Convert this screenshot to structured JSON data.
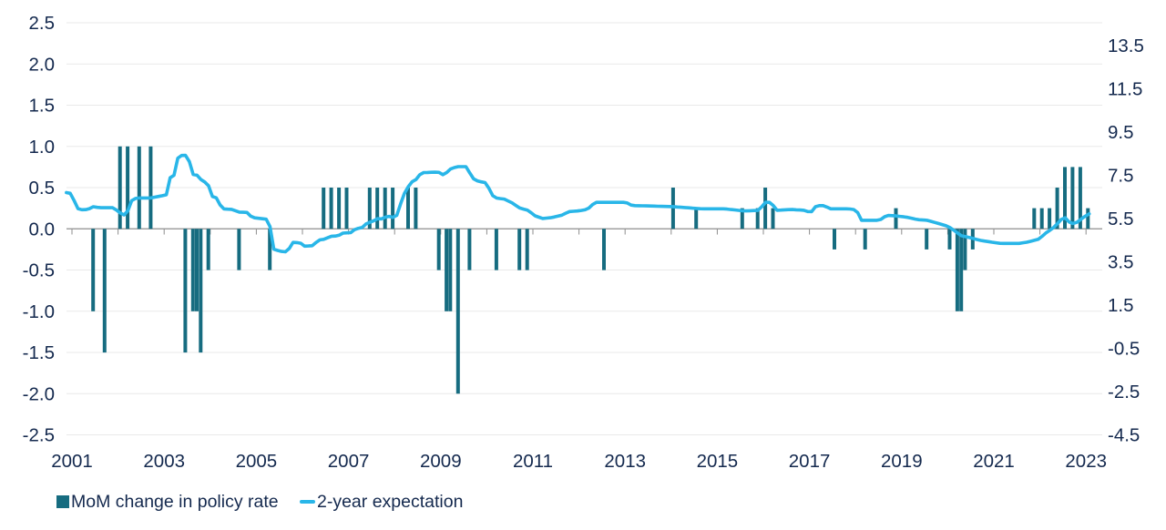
{
  "legend": {
    "bar_label": "MoM change in policy rate",
    "line_label": "2-year expectation"
  },
  "colors": {
    "bar": "#166c80",
    "line": "#29b6e8",
    "text": "#14294e",
    "gridline": "#e9e9e9",
    "axis": "#8e8e8e",
    "background": "#ffffff"
  },
  "chart_data": {
    "type": "combo-bar-line",
    "title": "",
    "grid": true,
    "legend_position": "bottom-left",
    "x_axis": {
      "tick_years": [
        2001,
        2002,
        2003,
        2004,
        2005,
        2006,
        2007,
        2008,
        2009,
        2010,
        2011,
        2012,
        2013,
        2014,
        2015,
        2016,
        2017,
        2018,
        2019,
        2020,
        2021,
        2022,
        2023
      ],
      "label_years": [
        "2001",
        "2003",
        "2005",
        "2007",
        "2009",
        "2011",
        "2013",
        "2015",
        "2017",
        "2019",
        "2021",
        "2023"
      ]
    },
    "left_axis": {
      "min": -2.5,
      "max": 2.5,
      "step": 0.5,
      "tick_labels": [
        "2.5",
        "2.0",
        "1.5",
        "1.0",
        "0.5",
        "0.0",
        "-0.5",
        "-1.0",
        "-1.5",
        "-2.0",
        "-2.5"
      ]
    },
    "right_axis": {
      "min": -4.5,
      "max": 13.5,
      "step": 2,
      "tick_labels": [
        "13.5",
        "11.5",
        "9.5",
        "7.5",
        "5.5",
        "3.5",
        "1.5",
        "-0.5",
        "-2.5",
        "-4.5"
      ]
    },
    "series": [
      {
        "name": "MoM change in policy rate",
        "type": "bar",
        "axis": "left",
        "color": "#166c80",
        "points": [
          [
            "2001-06",
            -1.0
          ],
          [
            "2001-09",
            -1.5
          ],
          [
            "2002-01",
            1.0
          ],
          [
            "2002-03",
            1.0
          ],
          [
            "2002-06",
            1.0
          ],
          [
            "2002-09",
            1.0
          ],
          [
            "2003-06",
            -1.5
          ],
          [
            "2003-08",
            -1.0
          ],
          [
            "2003-09",
            -1.0
          ],
          [
            "2003-10",
            -1.5
          ],
          [
            "2003-12",
            -0.5
          ],
          [
            "2004-08",
            -0.5
          ],
          [
            "2005-04",
            -0.5
          ],
          [
            "2006-06",
            0.5
          ],
          [
            "2006-08",
            0.5
          ],
          [
            "2006-10",
            0.5
          ],
          [
            "2006-12",
            0.5
          ],
          [
            "2007-06",
            0.5
          ],
          [
            "2007-08",
            0.5
          ],
          [
            "2007-10",
            0.5
          ],
          [
            "2007-12",
            0.5
          ],
          [
            "2008-04",
            0.5
          ],
          [
            "2008-06",
            0.5
          ],
          [
            "2008-12",
            -0.5
          ],
          [
            "2009-02",
            -1.0
          ],
          [
            "2009-03",
            -1.0
          ],
          [
            "2009-05",
            -2.0
          ],
          [
            "2009-08",
            -0.5
          ],
          [
            "2010-03",
            -0.5
          ],
          [
            "2010-09",
            -0.5
          ],
          [
            "2010-11",
            -0.5
          ],
          [
            "2012-07",
            -0.5
          ],
          [
            "2014-01",
            0.5
          ],
          [
            "2014-07",
            0.25
          ],
          [
            "2015-07",
            0.25
          ],
          [
            "2015-11",
            0.25
          ],
          [
            "2016-01",
            0.5
          ],
          [
            "2016-03",
            0.25
          ],
          [
            "2017-07",
            -0.25
          ],
          [
            "2018-03",
            -0.25
          ],
          [
            "2018-11",
            0.25
          ],
          [
            "2019-07",
            -0.25
          ],
          [
            "2020-01",
            -0.25
          ],
          [
            "2020-03",
            -1.0
          ],
          [
            "2020-04",
            -1.0
          ],
          [
            "2020-05",
            -0.5
          ],
          [
            "2020-07",
            -0.25
          ],
          [
            "2021-11",
            0.25
          ],
          [
            "2022-01",
            0.25
          ],
          [
            "2022-03",
            0.25
          ],
          [
            "2022-05",
            0.5
          ],
          [
            "2022-07",
            0.75
          ],
          [
            "2022-09",
            0.75
          ],
          [
            "2022-11",
            0.75
          ],
          [
            "2023-01",
            0.25
          ]
        ]
      },
      {
        "name": "2-year expectation",
        "type": "line",
        "axis": "right",
        "color": "#29b6e8",
        "points": [
          [
            2000.88,
            6.7
          ],
          [
            2001.0,
            6.65
          ],
          [
            2001.08,
            6.1
          ],
          [
            2001.15,
            5.9
          ],
          [
            2001.35,
            5.92
          ],
          [
            2001.45,
            6.05
          ],
          [
            2001.6,
            6.0
          ],
          [
            2001.88,
            6.0
          ],
          [
            2002.0,
            5.85
          ],
          [
            2002.08,
            5.7
          ],
          [
            2002.17,
            5.64
          ],
          [
            2002.24,
            6.0
          ],
          [
            2002.3,
            6.35
          ],
          [
            2002.4,
            6.45
          ],
          [
            2002.7,
            6.45
          ],
          [
            2002.95,
            6.55
          ],
          [
            2003.05,
            6.6
          ],
          [
            2003.1,
            7.3
          ],
          [
            2003.17,
            7.5
          ],
          [
            2003.25,
            7.5
          ],
          [
            2003.3,
            8.35
          ],
          [
            2003.38,
            8.42
          ],
          [
            2003.52,
            8.42
          ],
          [
            2003.6,
            7.55
          ],
          [
            2003.72,
            7.5
          ],
          [
            2003.8,
            7.3
          ],
          [
            2003.95,
            7.1
          ],
          [
            2004.05,
            6.5
          ],
          [
            2004.15,
            6.45
          ],
          [
            2004.25,
            5.95
          ],
          [
            2004.5,
            5.92
          ],
          [
            2004.6,
            5.8
          ],
          [
            2004.82,
            5.78
          ],
          [
            2004.9,
            5.55
          ],
          [
            2005.1,
            5.5
          ],
          [
            2005.28,
            5.45
          ],
          [
            2005.35,
            4.1
          ],
          [
            2005.5,
            4.0
          ],
          [
            2005.62,
            3.95
          ],
          [
            2005.7,
            4.05
          ],
          [
            2005.77,
            4.4
          ],
          [
            2005.95,
            4.38
          ],
          [
            2006.05,
            4.22
          ],
          [
            2006.25,
            4.25
          ],
          [
            2006.33,
            4.5
          ],
          [
            2006.5,
            4.55
          ],
          [
            2006.6,
            4.68
          ],
          [
            2006.78,
            4.7
          ],
          [
            2006.85,
            4.82
          ],
          [
            2007.05,
            4.85
          ],
          [
            2007.15,
            5.02
          ],
          [
            2007.32,
            5.1
          ],
          [
            2007.4,
            5.3
          ],
          [
            2007.52,
            5.35
          ],
          [
            2007.6,
            5.5
          ],
          [
            2007.72,
            5.48
          ],
          [
            2007.85,
            5.62
          ],
          [
            2007.97,
            5.55
          ],
          [
            2008.07,
            5.68
          ],
          [
            2008.15,
            6.35
          ],
          [
            2008.25,
            6.85
          ],
          [
            2008.38,
            7.2
          ],
          [
            2008.5,
            7.35
          ],
          [
            2008.57,
            7.62
          ],
          [
            2008.95,
            7.65
          ],
          [
            2009.07,
            7.5
          ],
          [
            2009.2,
            7.78
          ],
          [
            2009.35,
            7.9
          ],
          [
            2009.58,
            7.9
          ],
          [
            2009.67,
            7.38
          ],
          [
            2009.82,
            7.22
          ],
          [
            2010.0,
            7.15
          ],
          [
            2010.1,
            6.6
          ],
          [
            2010.2,
            6.45
          ],
          [
            2010.38,
            6.4
          ],
          [
            2010.55,
            6.22
          ],
          [
            2010.72,
            5.98
          ],
          [
            2010.9,
            5.88
          ],
          [
            2011.05,
            5.62
          ],
          [
            2011.22,
            5.5
          ],
          [
            2011.42,
            5.55
          ],
          [
            2011.62,
            5.65
          ],
          [
            2011.78,
            5.82
          ],
          [
            2011.98,
            5.85
          ],
          [
            2012.18,
            5.92
          ],
          [
            2012.35,
            6.25
          ],
          [
            2013.02,
            6.25
          ],
          [
            2013.15,
            6.1
          ],
          [
            2013.55,
            6.08
          ],
          [
            2014.05,
            6.05
          ],
          [
            2014.65,
            5.95
          ],
          [
            2015.15,
            5.95
          ],
          [
            2015.6,
            5.85
          ],
          [
            2015.92,
            5.88
          ],
          [
            2016.02,
            6.25
          ],
          [
            2016.17,
            6.25
          ],
          [
            2016.28,
            5.88
          ],
          [
            2016.6,
            5.92
          ],
          [
            2016.92,
            5.88
          ],
          [
            2017.02,
            5.75
          ],
          [
            2017.15,
            6.1
          ],
          [
            2017.32,
            6.1
          ],
          [
            2017.45,
            5.95
          ],
          [
            2017.85,
            5.95
          ],
          [
            2018.02,
            5.9
          ],
          [
            2018.12,
            5.42
          ],
          [
            2018.48,
            5.42
          ],
          [
            2018.58,
            5.48
          ],
          [
            2018.66,
            5.65
          ],
          [
            2018.9,
            5.62
          ],
          [
            2019.15,
            5.55
          ],
          [
            2019.35,
            5.45
          ],
          [
            2019.55,
            5.42
          ],
          [
            2019.75,
            5.3
          ],
          [
            2019.95,
            5.18
          ],
          [
            2020.08,
            5.05
          ],
          [
            2020.18,
            4.88
          ],
          [
            2020.3,
            4.7
          ],
          [
            2020.48,
            4.62
          ],
          [
            2020.68,
            4.5
          ],
          [
            2020.92,
            4.42
          ],
          [
            2021.15,
            4.35
          ],
          [
            2021.55,
            4.35
          ],
          [
            2021.75,
            4.42
          ],
          [
            2021.98,
            4.55
          ],
          [
            2022.12,
            4.82
          ],
          [
            2022.28,
            5.05
          ],
          [
            2022.42,
            5.35
          ],
          [
            2022.52,
            5.6
          ],
          [
            2022.67,
            5.25
          ],
          [
            2022.8,
            5.32
          ],
          [
            2022.94,
            5.55
          ],
          [
            2023.07,
            5.72
          ]
        ]
      }
    ]
  }
}
